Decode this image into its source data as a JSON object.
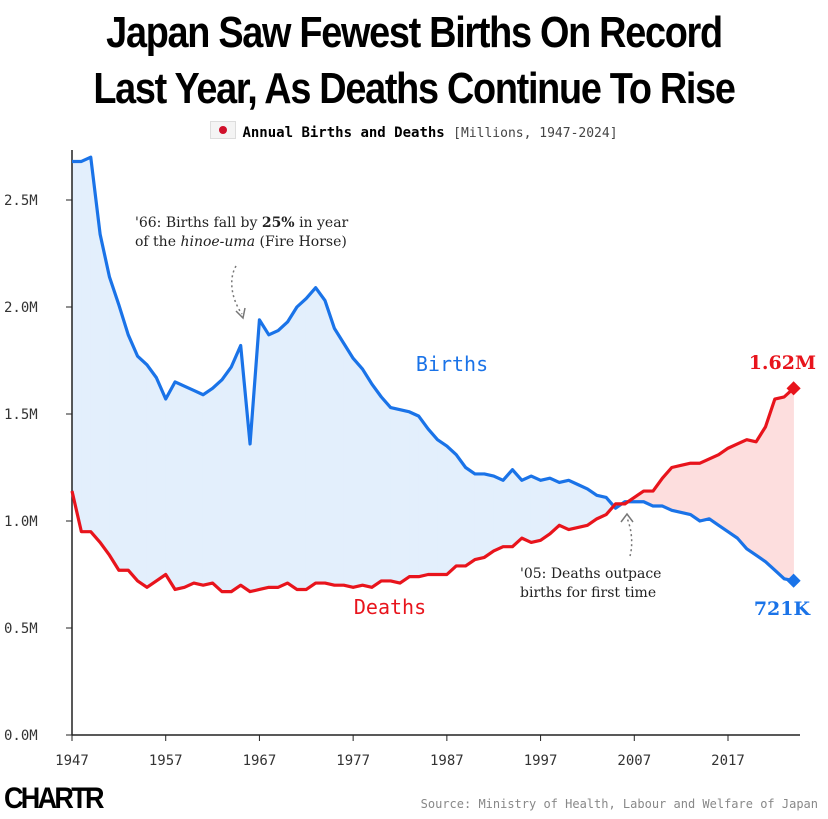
{
  "title_line1": "Japan Saw Fewest Births On Record",
  "title_line2": "Last Year, As Deaths Continue To Rise",
  "subtitle": {
    "flag_icon": "japan-flag-icon",
    "main": "Annual Births and Deaths",
    "range": "[Millions, 1947-2024]"
  },
  "annotations": {
    "hinoeuma_1": "'66: Births fall by ",
    "hinoeuma_bold": "25%",
    "hinoeuma_2": " in year",
    "hinoeuma_3": "of the ",
    "hinoeuma_italic": "hinoe-uma",
    "hinoeuma_4": " (Fire Horse)",
    "crossover_1": "'05: Deaths outpace",
    "crossover_2": "births for first time"
  },
  "end_labels": {
    "births": "721K",
    "deaths": "1.62M"
  },
  "source": "Source: Ministry of Health, Labour and Welfare of Japan",
  "logo": "CHARTR",
  "chart_data": {
    "type": "line",
    "x": [
      1947,
      1948,
      1949,
      1950,
      1951,
      1952,
      1953,
      1954,
      1955,
      1956,
      1957,
      1958,
      1959,
      1960,
      1961,
      1962,
      1963,
      1964,
      1965,
      1966,
      1967,
      1968,
      1969,
      1970,
      1971,
      1972,
      1973,
      1974,
      1975,
      1976,
      1977,
      1978,
      1979,
      1980,
      1981,
      1982,
      1983,
      1984,
      1985,
      1986,
      1987,
      1988,
      1989,
      1990,
      1991,
      1992,
      1993,
      1994,
      1995,
      1996,
      1997,
      1998,
      1999,
      2000,
      2001,
      2002,
      2003,
      2004,
      2005,
      2006,
      2007,
      2008,
      2009,
      2010,
      2011,
      2012,
      2013,
      2014,
      2015,
      2016,
      2017,
      2018,
      2019,
      2020,
      2021,
      2022,
      2023,
      2024
    ],
    "series": [
      {
        "name": "Births",
        "color": "#1a73e8",
        "values": [
          2.68,
          2.68,
          2.7,
          2.34,
          2.14,
          2.01,
          1.87,
          1.77,
          1.73,
          1.67,
          1.57,
          1.65,
          1.63,
          1.61,
          1.59,
          1.62,
          1.66,
          1.72,
          1.82,
          1.36,
          1.94,
          1.87,
          1.89,
          1.93,
          2.0,
          2.04,
          2.09,
          2.03,
          1.9,
          1.83,
          1.76,
          1.71,
          1.64,
          1.58,
          1.53,
          1.52,
          1.51,
          1.49,
          1.43,
          1.38,
          1.35,
          1.31,
          1.25,
          1.22,
          1.22,
          1.21,
          1.19,
          1.24,
          1.19,
          1.21,
          1.19,
          1.2,
          1.18,
          1.19,
          1.17,
          1.15,
          1.12,
          1.11,
          1.06,
          1.09,
          1.09,
          1.09,
          1.07,
          1.07,
          1.05,
          1.04,
          1.03,
          1.0,
          1.01,
          0.98,
          0.95,
          0.92,
          0.87,
          0.84,
          0.81,
          0.77,
          0.73,
          0.721
        ]
      },
      {
        "name": "Deaths",
        "color": "#e8141c",
        "values": [
          1.14,
          0.95,
          0.95,
          0.9,
          0.84,
          0.77,
          0.77,
          0.72,
          0.69,
          0.72,
          0.75,
          0.68,
          0.69,
          0.71,
          0.7,
          0.71,
          0.67,
          0.67,
          0.7,
          0.67,
          0.68,
          0.69,
          0.69,
          0.71,
          0.68,
          0.68,
          0.71,
          0.71,
          0.7,
          0.7,
          0.69,
          0.7,
          0.69,
          0.72,
          0.72,
          0.71,
          0.74,
          0.74,
          0.75,
          0.75,
          0.75,
          0.79,
          0.79,
          0.82,
          0.83,
          0.86,
          0.88,
          0.88,
          0.92,
          0.9,
          0.91,
          0.94,
          0.98,
          0.96,
          0.97,
          0.98,
          1.01,
          1.03,
          1.08,
          1.08,
          1.11,
          1.14,
          1.14,
          1.2,
          1.25,
          1.26,
          1.27,
          1.27,
          1.29,
          1.31,
          1.34,
          1.36,
          1.38,
          1.37,
          1.44,
          1.57,
          1.58,
          1.62
        ]
      }
    ],
    "fill_colors": {
      "births_above": "#e3effc",
      "deaths_above": "#fddede"
    },
    "ylim": [
      0,
      2.75
    ],
    "yticks": [
      0,
      0.5,
      1.0,
      1.5,
      2.0,
      2.5
    ],
    "ytick_labels": [
      "0.0M",
      "0.5M",
      "1.0M",
      "1.5M",
      "2.0M",
      "2.5M"
    ],
    "xticks": [
      1947,
      1957,
      1967,
      1977,
      1987,
      1997,
      2007,
      2017
    ],
    "xtick_labels": [
      "1947",
      "1957",
      "1967",
      "1977",
      "1987",
      "1997",
      "2007",
      "2017"
    ],
    "grid": false
  }
}
